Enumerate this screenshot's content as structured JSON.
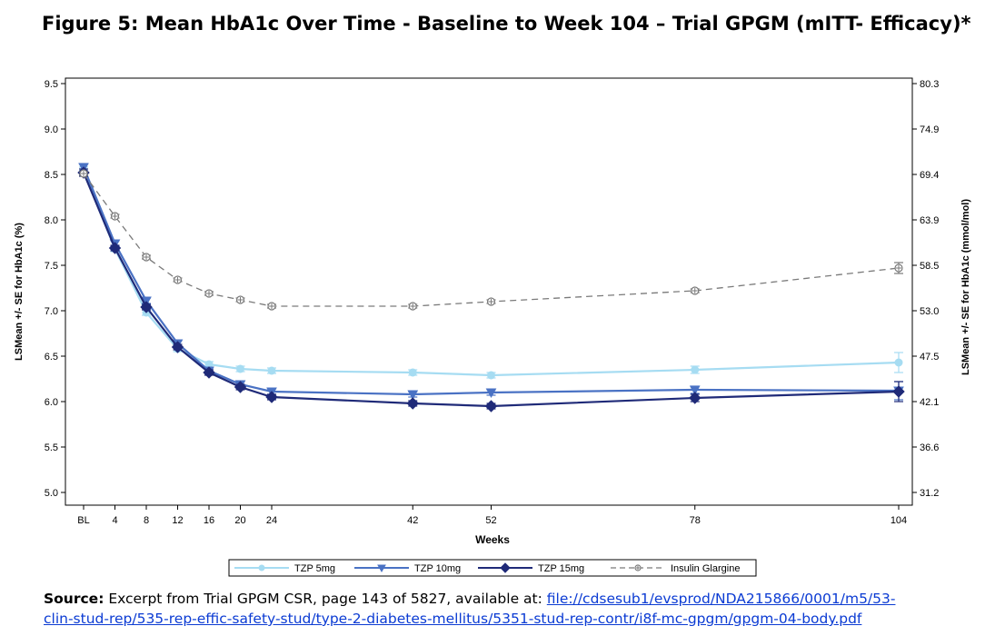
{
  "figure_title": "Figure 5: Mean HbA1c Over Time - Baseline to Week 104 – Trial GPGM (mITT- Efficacy)*",
  "source": {
    "label": "Source:",
    "text": " Excerpt from Trial GPGM CSR, page 143 of 5827, available at: ",
    "link_line1": "file://cdsesub1/evsprod/NDA215866/0001/m5/53-",
    "link_line2": "clin-stud-rep/535-rep-effic-safety-stud/type-2-diabetes-mellitus/5351-stud-rep-contr/i8f-mc-gpgm/gpgm-04-body.pdf"
  },
  "colors": {
    "tzp5": "#a6dcf2",
    "tzp10": "#4a72c4",
    "tzp15": "#1f2a78",
    "glargine": "#7a7a7a",
    "link": "#0b3bd3"
  },
  "chart_data": {
    "type": "line",
    "xlabel": "Weeks",
    "ylabel": "LSMean +/- SE for HbA1c (%)",
    "y2label": "LSMean +/- SE for HbA1c (mmol/mol)",
    "x_tick_labels": [
      "BL",
      "4",
      "8",
      "12",
      "16",
      "20",
      "24",
      "42",
      "52",
      "78",
      "104"
    ],
    "x": [
      0,
      4,
      8,
      12,
      16,
      20,
      24,
      42,
      52,
      78,
      104
    ],
    "ylim": [
      5.0,
      9.5
    ],
    "y_ticks": [
      "5.0",
      "5.5",
      "6.0",
      "6.5",
      "7.0",
      "7.5",
      "8.0",
      "8.5",
      "9.0",
      "9.5"
    ],
    "y2_ticks": [
      "31.2",
      "36.6",
      "42.1",
      "47.5",
      "53.0",
      "58.5",
      "63.9",
      "69.4",
      "74.9",
      "80.3"
    ],
    "grid": false,
    "legend_position": "bottom",
    "series": [
      {
        "name": "TZP 5mg",
        "key": "tzp5",
        "marker": "circle",
        "dash": false,
        "x": [
          0,
          4,
          8,
          12,
          16,
          20,
          24,
          42,
          52,
          78,
          104
        ],
        "values": [
          8.54,
          7.68,
          6.98,
          6.58,
          6.41,
          6.36,
          6.34,
          6.32,
          6.29,
          6.35,
          6.43
        ],
        "se": [
          0.04,
          0.03,
          0.03,
          0.03,
          0.03,
          0.03,
          0.03,
          0.03,
          0.03,
          0.04,
          0.11
        ]
      },
      {
        "name": "TZP 10mg",
        "key": "tzp10",
        "marker": "triangle-down",
        "dash": false,
        "x": [
          0,
          4,
          8,
          12,
          16,
          20,
          24,
          42,
          52,
          78,
          104
        ],
        "values": [
          8.58,
          7.74,
          7.11,
          6.64,
          6.34,
          6.19,
          6.11,
          6.08,
          6.1,
          6.13,
          6.12
        ],
        "se": [
          0.04,
          0.03,
          0.03,
          0.03,
          0.03,
          0.03,
          0.03,
          0.03,
          0.03,
          0.04,
          0.1
        ]
      },
      {
        "name": "TZP 15mg",
        "key": "tzp15",
        "marker": "diamond",
        "dash": false,
        "x": [
          0,
          4,
          8,
          12,
          16,
          20,
          24,
          42,
          52,
          78,
          104
        ],
        "values": [
          8.52,
          7.69,
          7.04,
          6.6,
          6.32,
          6.16,
          6.05,
          5.98,
          5.95,
          6.04,
          6.11
        ],
        "se": [
          0.04,
          0.03,
          0.03,
          0.03,
          0.03,
          0.03,
          0.03,
          0.03,
          0.03,
          0.04,
          0.11
        ]
      },
      {
        "name": "Insulin Glargine",
        "key": "glargine",
        "marker": "open-circle",
        "dash": true,
        "x": [
          0,
          4,
          8,
          12,
          16,
          20,
          24,
          42,
          52,
          78,
          104
        ],
        "values": [
          8.51,
          8.04,
          7.59,
          7.34,
          7.19,
          7.12,
          7.05,
          7.05,
          7.1,
          7.22,
          7.47
        ],
        "se": [
          0.02,
          0.02,
          0.02,
          0.02,
          0.02,
          0.02,
          0.02,
          0.02,
          0.02,
          0.02,
          0.06
        ]
      }
    ]
  }
}
